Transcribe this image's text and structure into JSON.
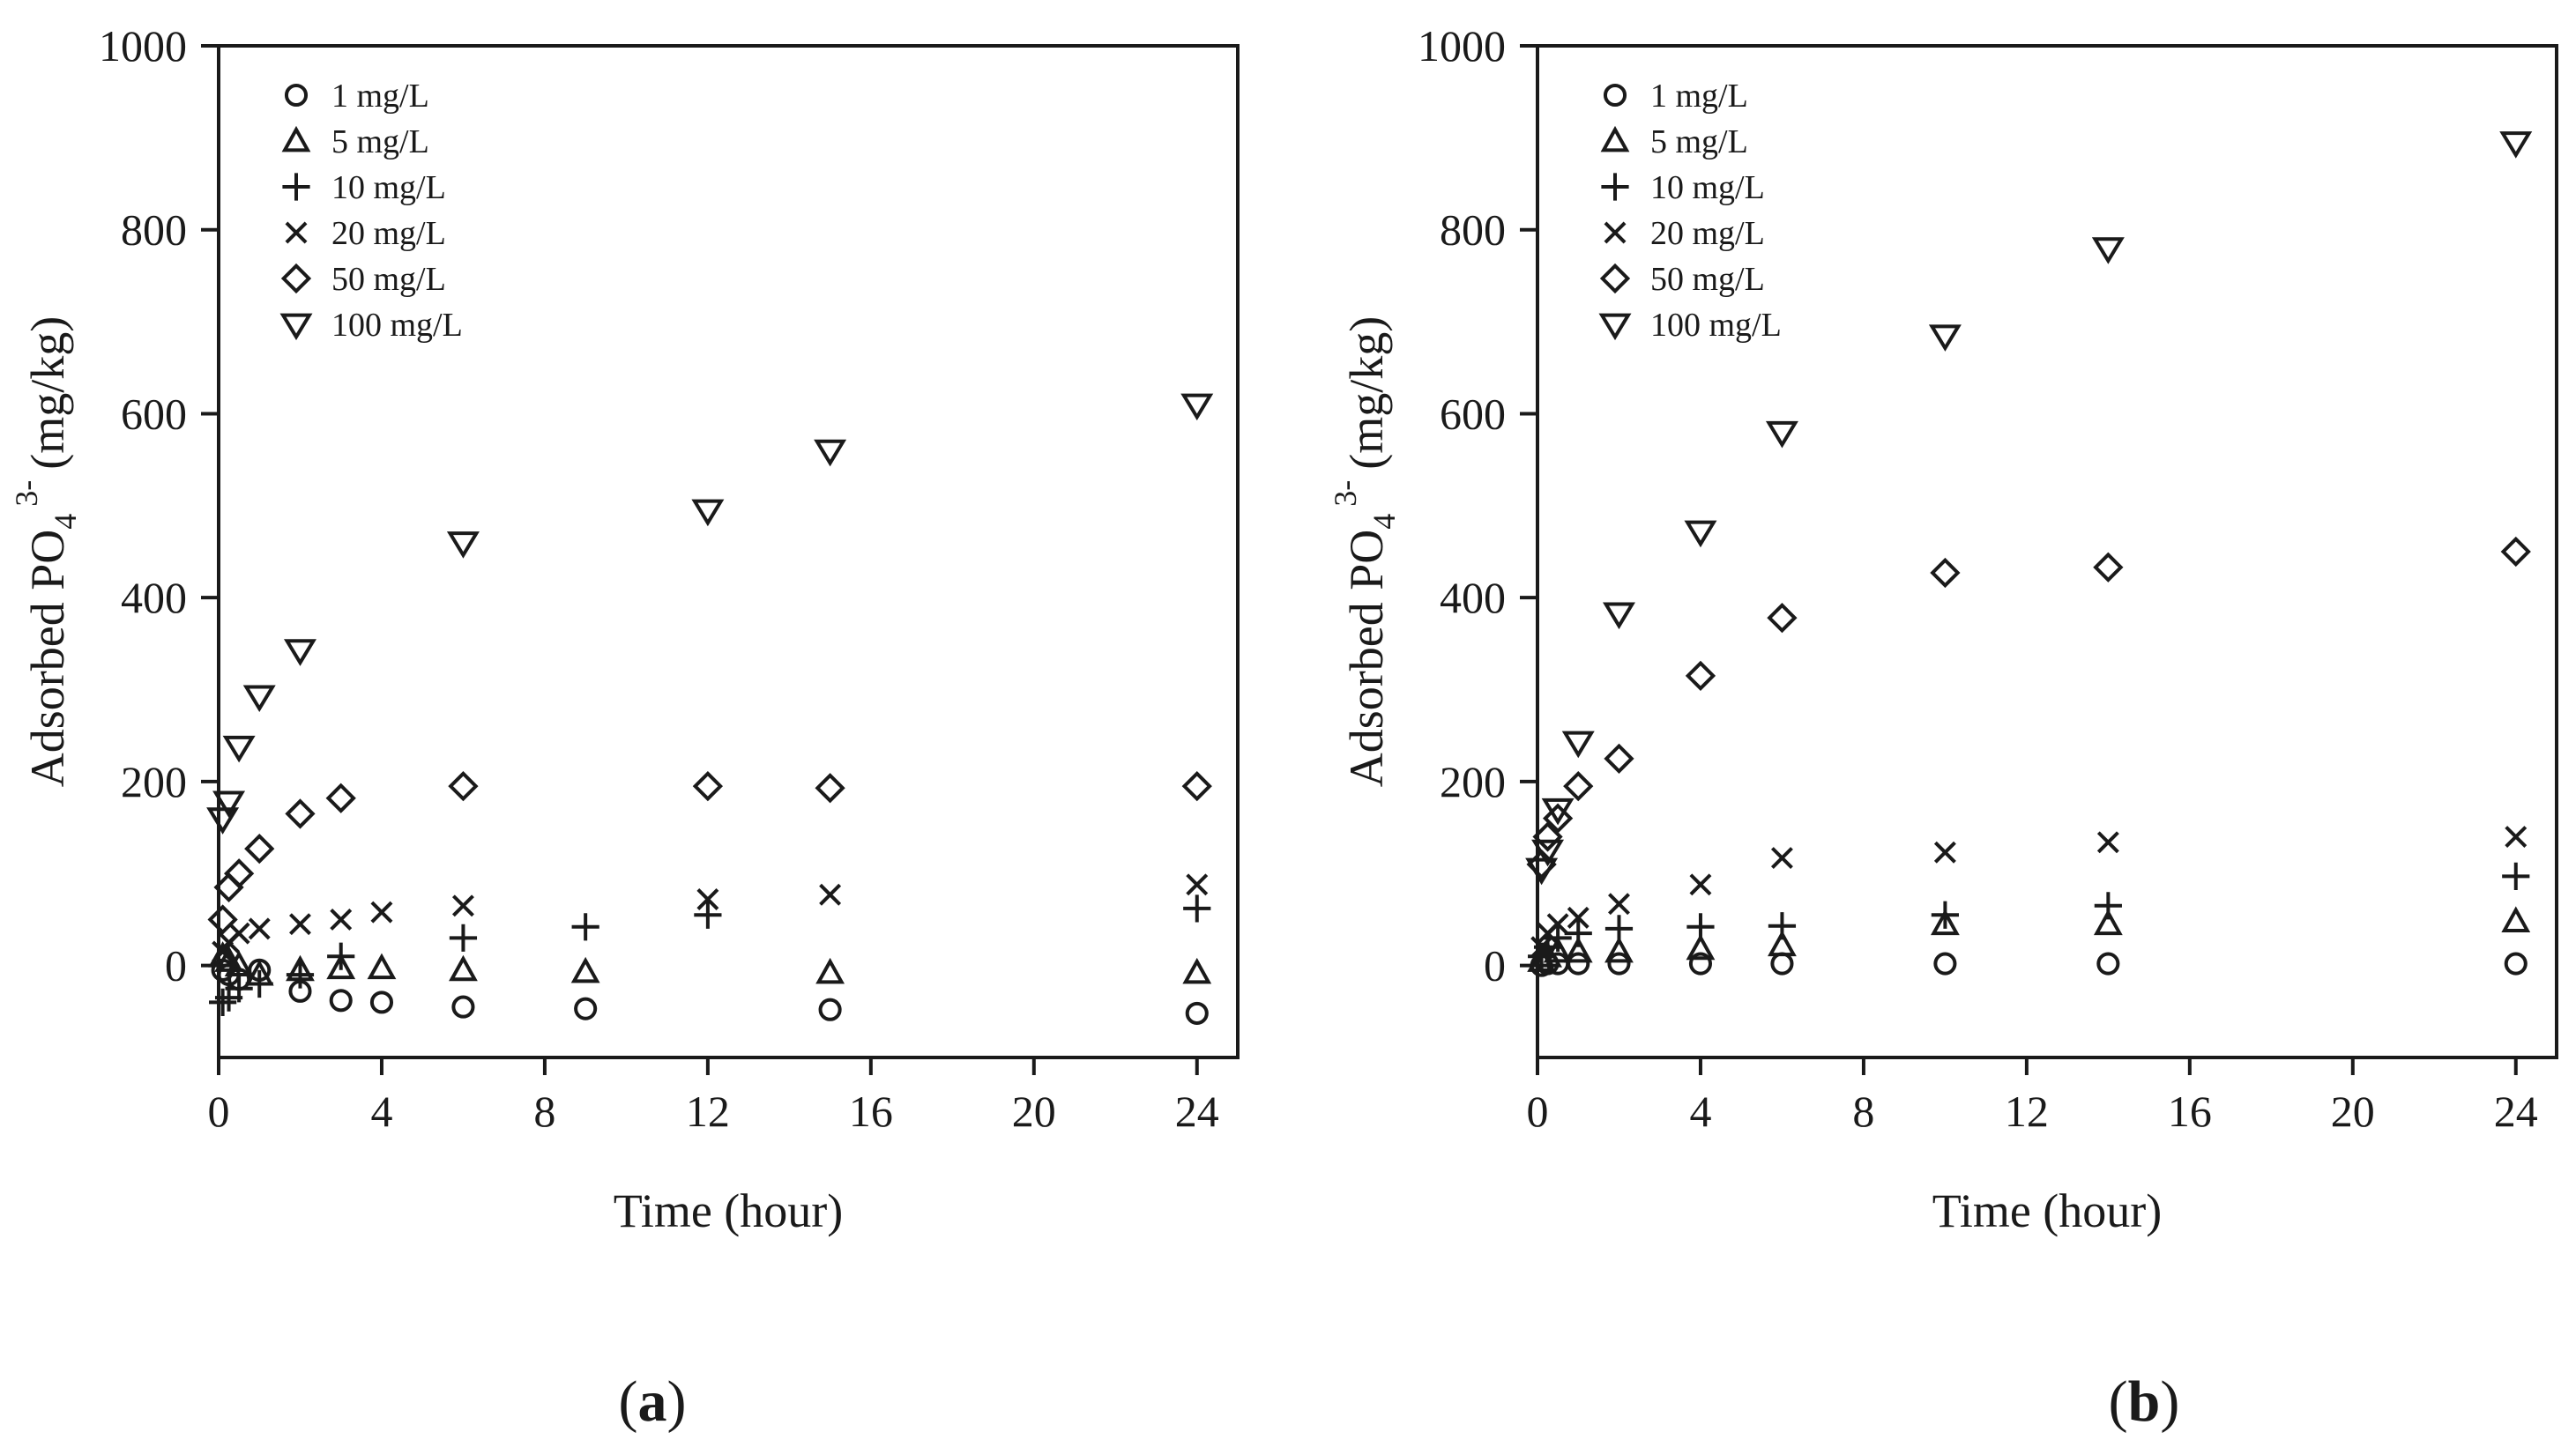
{
  "chart_data": [
    {
      "type": "scatter",
      "panel": "a",
      "xlabel": "Time (hour)",
      "ylabel": "Adsorbed PO",
      "ylabel_sub": "4",
      "ylabel_sup": "3-",
      "ylabel_units": "(mg/kg)",
      "xlim": [
        0,
        25
      ],
      "ylim": [
        -100,
        1000
      ],
      "xticks": [
        0,
        4,
        8,
        12,
        16,
        20,
        24
      ],
      "yticks": [
        0,
        200,
        400,
        600,
        800,
        1000
      ],
      "legend_position": "top-left",
      "caption_open": "(",
      "caption_letter": "a",
      "caption_close": ")",
      "series": [
        {
          "name": "1 mg/L",
          "marker": "circle",
          "x": [
            0.1,
            0.25,
            0.5,
            1,
            2,
            3,
            4,
            6,
            9,
            15,
            24
          ],
          "y": [
            -5,
            -10,
            -15,
            -5,
            -28,
            -38,
            -40,
            -45,
            -47,
            -48,
            -52
          ]
        },
        {
          "name": "5 mg/L",
          "marker": "triangle-up",
          "x": [
            0.1,
            0.25,
            0.5,
            1,
            2,
            3,
            4,
            6,
            9,
            15,
            24
          ],
          "y": [
            10,
            5,
            0,
            -10,
            -5,
            -3,
            -3,
            -5,
            -7,
            -8,
            -8
          ]
        },
        {
          "name": "10 mg/L",
          "marker": "plus",
          "x": [
            0.1,
            0.25,
            0.5,
            1,
            2,
            3,
            6,
            9,
            12,
            24
          ],
          "y": [
            -40,
            -35,
            -25,
            -20,
            -10,
            10,
            30,
            42,
            55,
            62
          ]
        },
        {
          "name": "20 mg/L",
          "marker": "cross",
          "x": [
            0.1,
            0.25,
            0.5,
            1,
            2,
            3,
            4,
            6,
            12,
            15,
            24
          ],
          "y": [
            15,
            25,
            35,
            40,
            45,
            50,
            58,
            65,
            72,
            77,
            88
          ]
        },
        {
          "name": "50 mg/L",
          "marker": "diamond",
          "x": [
            0.1,
            0.25,
            0.5,
            1,
            2,
            3,
            6,
            12,
            15,
            24
          ],
          "y": [
            50,
            85,
            100,
            127,
            165,
            182,
            195,
            195,
            193,
            195
          ]
        },
        {
          "name": "100 mg/L",
          "marker": "triangle-down",
          "x": [
            0.1,
            0.25,
            0.5,
            1,
            2,
            6,
            12,
            15,
            24
          ],
          "y": [
            160,
            178,
            238,
            293,
            343,
            460,
            495,
            560,
            610
          ]
        }
      ]
    },
    {
      "type": "scatter",
      "panel": "b",
      "xlabel": "Time (hour)",
      "ylabel": "Adsorbed PO",
      "ylabel_sub": "4",
      "ylabel_sup": "3-",
      "ylabel_units": "(mg/kg)",
      "xlim": [
        0,
        25
      ],
      "ylim": [
        -100,
        1000
      ],
      "xticks": [
        0,
        4,
        8,
        12,
        16,
        20,
        24
      ],
      "yticks": [
        0,
        200,
        400,
        600,
        800,
        1000
      ],
      "legend_position": "top-left",
      "caption_open": "(",
      "caption_letter": "b",
      "caption_close": ")",
      "series": [
        {
          "name": "1 mg/L",
          "marker": "circle",
          "x": [
            0.1,
            0.25,
            0.5,
            1,
            2,
            4,
            6,
            10,
            14,
            24
          ],
          "y": [
            0,
            2,
            2,
            2,
            2,
            2,
            2,
            2,
            2,
            2
          ]
        },
        {
          "name": "5 mg/L",
          "marker": "triangle-up",
          "x": [
            0.1,
            0.25,
            0.5,
            1,
            2,
            4,
            6,
            10,
            14,
            24
          ],
          "y": [
            5,
            10,
            15,
            15,
            15,
            18,
            22,
            45,
            45,
            48
          ]
        },
        {
          "name": "10 mg/L",
          "marker": "plus",
          "x": [
            0.1,
            0.25,
            0.5,
            1,
            2,
            4,
            6,
            10,
            14,
            24
          ],
          "y": [
            10,
            20,
            30,
            35,
            40,
            42,
            43,
            55,
            65,
            97
          ]
        },
        {
          "name": "20 mg/L",
          "marker": "cross",
          "x": [
            0.1,
            0.25,
            0.5,
            1,
            2,
            4,
            6,
            10,
            14,
            24
          ],
          "y": [
            20,
            35,
            45,
            52,
            67,
            88,
            117,
            123,
            134,
            140
          ]
        },
        {
          "name": "50 mg/L",
          "marker": "diamond",
          "x": [
            0.1,
            0.25,
            0.5,
            1,
            2,
            4,
            6,
            10,
            14,
            24
          ],
          "y": [
            110,
            140,
            160,
            195,
            225,
            315,
            378,
            427,
            433,
            450
          ]
        },
        {
          "name": "100 mg/L",
          "marker": "triangle-down",
          "x": [
            0.1,
            0.25,
            0.5,
            1,
            2,
            4,
            6,
            10,
            14,
            24
          ],
          "y": [
            105,
            125,
            170,
            243,
            383,
            472,
            580,
            685,
            780,
            895
          ]
        }
      ]
    }
  ]
}
